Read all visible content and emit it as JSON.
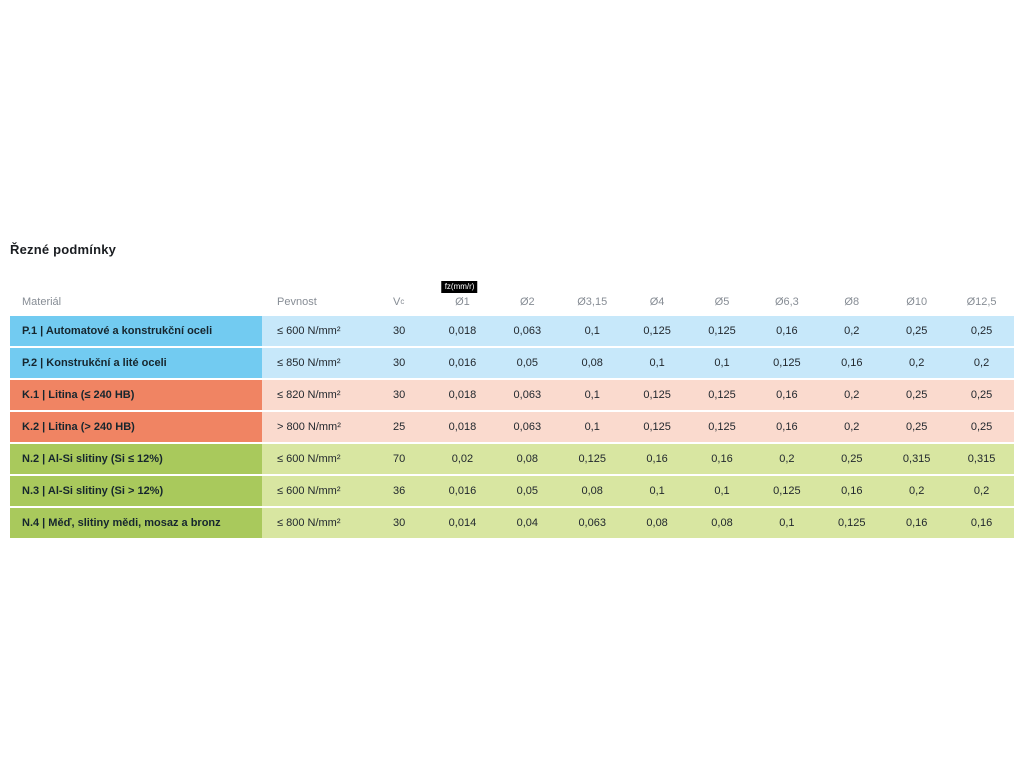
{
  "page": {
    "title": "Řezné podmínky"
  },
  "table": {
    "headers": {
      "material": "Materiál",
      "strength": "Pevnost",
      "vc_main": "V",
      "vc_sub": "c",
      "fz_unit": "fz(mm/r)",
      "diameters": [
        "Ø1",
        "Ø2",
        "Ø3,15",
        "Ø4",
        "Ø5",
        "Ø6,3",
        "Ø8",
        "Ø10",
        "Ø12,5"
      ]
    },
    "rows": [
      {
        "tone": "blue",
        "material": "P.1 | Automatové a konstrukční oceli",
        "strength": "≤ 600 N/mm²",
        "vc": "30",
        "values": [
          "0,018",
          "0,063",
          "0,1",
          "0,125",
          "0,125",
          "0,16",
          "0,2",
          "0,25",
          "0,25"
        ]
      },
      {
        "tone": "blue",
        "material": "P.2 | Konstrukční a lité oceli",
        "strength": "≤ 850 N/mm²",
        "vc": "30",
        "values": [
          "0,016",
          "0,05",
          "0,08",
          "0,1",
          "0,1",
          "0,125",
          "0,16",
          "0,2",
          "0,2"
        ]
      },
      {
        "tone": "salmon",
        "material": "K.1 | Litina (≤ 240 HB)",
        "strength": "≤ 820 N/mm²",
        "vc": "30",
        "values": [
          "0,018",
          "0,063",
          "0,1",
          "0,125",
          "0,125",
          "0,16",
          "0,2",
          "0,25",
          "0,25"
        ]
      },
      {
        "tone": "salmon",
        "material": "K.2 | Litina (> 240 HB)",
        "strength": "> 800 N/mm²",
        "vc": "25",
        "values": [
          "0,018",
          "0,063",
          "0,1",
          "0,125",
          "0,125",
          "0,16",
          "0,2",
          "0,25",
          "0,25"
        ]
      },
      {
        "tone": "green",
        "material": "N.2 | Al-Si slitiny (Si ≤ 12%)",
        "strength": "≤ 600 N/mm²",
        "vc": "70",
        "values": [
          "0,02",
          "0,08",
          "0,125",
          "0,16",
          "0,16",
          "0,2",
          "0,25",
          "0,315",
          "0,315"
        ]
      },
      {
        "tone": "green",
        "material": "N.3 | Al-Si slitiny (Si > 12%)",
        "strength": "≤ 600 N/mm²",
        "vc": "36",
        "values": [
          "0,016",
          "0,05",
          "0,08",
          "0,1",
          "0,1",
          "0,125",
          "0,16",
          "0,2",
          "0,2"
        ]
      },
      {
        "tone": "green",
        "material": "N.4 | Měď, slitiny mědi, mosaz a bronz",
        "strength": "≤ 800 N/mm²",
        "vc": "30",
        "values": [
          "0,014",
          "0,04",
          "0,063",
          "0,08",
          "0,08",
          "0,1",
          "0,125",
          "0,16",
          "0,16"
        ]
      }
    ]
  },
  "colors": {
    "blue_material": "#72cbf1",
    "blue_row": "#c7e8fa",
    "salmon_material": "#f08463",
    "salmon_row": "#fadace",
    "green_material": "#a9c95c",
    "green_row": "#d8e6a1",
    "header_text": "#878d95",
    "badge_bg": "#000000",
    "badge_text": "#ffffff"
  }
}
